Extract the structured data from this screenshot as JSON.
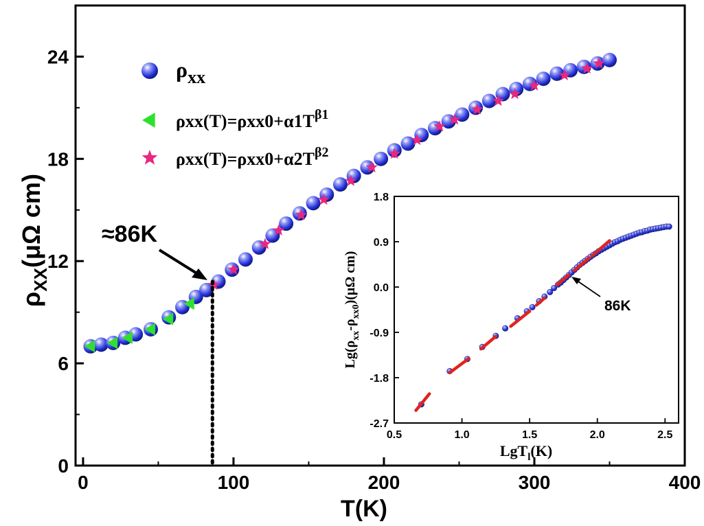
{
  "chart_data": [
    {
      "type": "scatter",
      "xlabel": "T(K)",
      "ylabel": "ρXX(μΩ cm)",
      "xlim": [
        -5,
        400
      ],
      "ylim": [
        0,
        27
      ],
      "xticks": [
        0,
        100,
        200,
        300,
        400
      ],
      "yticks": [
        0,
        6,
        12,
        18,
        24
      ],
      "legend_position": "top-left",
      "annotation": {
        "text": "≈86K",
        "x": 86,
        "y": 10.5
      },
      "vline_x": 86,
      "series": [
        {
          "name": "ρxx",
          "legend_label": "ρ",
          "legend_sub": "xx",
          "marker": "sphere",
          "color": "#2b3be0",
          "x": [
            5,
            12,
            20,
            28,
            35,
            45,
            57,
            66,
            75,
            82,
            90,
            99,
            108,
            117,
            126,
            135,
            144,
            153,
            162,
            171,
            180,
            189,
            198,
            207,
            216,
            225,
            234,
            243,
            252,
            261,
            270,
            279,
            288,
            297,
            306,
            315,
            324,
            333,
            342,
            350
          ],
          "y": [
            7.0,
            7.1,
            7.2,
            7.5,
            7.7,
            8.0,
            8.7,
            9.3,
            9.9,
            10.3,
            10.8,
            11.5,
            12.1,
            12.8,
            13.5,
            14.2,
            14.8,
            15.4,
            15.9,
            16.5,
            17.0,
            17.5,
            18.0,
            18.5,
            18.9,
            19.4,
            19.8,
            20.2,
            20.6,
            21.0,
            21.4,
            21.8,
            22.1,
            22.4,
            22.7,
            23.0,
            23.2,
            23.4,
            23.6,
            23.8
          ]
        },
        {
          "name": "fit1",
          "legend_label": "ρxx(T)=ρxx0+α1T",
          "legend_sup": "β1",
          "marker": "triangle-left",
          "color": "#2fe02f",
          "x": [
            5,
            20,
            30,
            45,
            57,
            71
          ],
          "y": [
            7.0,
            7.2,
            7.5,
            8.0,
            8.6,
            9.5
          ]
        },
        {
          "name": "fit2",
          "legend_label": "ρxx(T)=ρxx0+α2T",
          "legend_sup": "β2",
          "marker": "star",
          "color": "#e8287f",
          "x": [
            87,
            100,
            121,
            130,
            145,
            160,
            178,
            192,
            207,
            222,
            237,
            247,
            262,
            276,
            287,
            300,
            320,
            335,
            343
          ],
          "y": [
            10.6,
            11.5,
            13.0,
            13.8,
            14.7,
            15.6,
            16.7,
            17.5,
            18.3,
            19.1,
            19.9,
            20.3,
            20.9,
            21.4,
            21.8,
            22.3,
            22.9,
            23.3,
            23.6
          ]
        }
      ]
    },
    {
      "type": "scatter",
      "inset": true,
      "xlabel_main": "LgT",
      "xlabel_sub": "l",
      "xlabel_tail": "(K)",
      "ylabel_main": "Lg(ρ",
      "ylabel_sub1": "xx",
      "ylabel_mid": "-ρ",
      "ylabel_sub2": "xx0",
      "ylabel_tail": ")(μΩ cm)",
      "xlim": [
        0.5,
        2.6
      ],
      "ylim": [
        -2.7,
        1.8
      ],
      "xticks": [
        "0.5",
        "1.0",
        "1.5",
        "2.0",
        "2.5"
      ],
      "yticks": [
        "-2.7",
        "-1.8",
        "-0.9",
        "0.0",
        "0.9",
        "1.8"
      ],
      "annotation": {
        "text": "86K",
        "x": 1.93,
        "y": 0.03
      },
      "series": [
        {
          "name": "data",
          "marker": "circle",
          "color": "#2e3de0",
          "x": [
            0.7,
            0.91,
            1.04,
            1.15,
            1.25,
            1.32,
            1.41,
            1.48,
            1.52,
            1.57,
            1.61,
            1.65,
            1.68,
            1.71,
            1.73,
            1.75,
            1.77,
            1.79,
            1.81,
            1.83,
            1.85,
            1.87,
            1.89,
            1.91,
            1.93,
            1.95,
            1.97,
            1.99,
            2.01,
            2.03,
            2.05,
            2.07,
            2.09,
            2.11,
            2.13,
            2.15,
            2.17,
            2.19,
            2.21,
            2.23,
            2.25,
            2.27,
            2.29,
            2.31,
            2.33,
            2.35,
            2.37,
            2.39,
            2.41,
            2.43,
            2.45,
            2.47,
            2.49,
            2.51,
            2.53
          ],
          "y": [
            -2.33,
            -1.67,
            -1.43,
            -1.19,
            -0.97,
            -0.82,
            -0.62,
            -0.48,
            -0.4,
            -0.28,
            -0.19,
            -0.1,
            -0.02,
            0.05,
            0.09,
            0.14,
            0.19,
            0.24,
            0.29,
            0.34,
            0.39,
            0.44,
            0.48,
            0.52,
            0.56,
            0.6,
            0.64,
            0.67,
            0.71,
            0.74,
            0.77,
            0.8,
            0.83,
            0.86,
            0.89,
            0.91,
            0.94,
            0.96,
            0.98,
            1.0,
            1.02,
            1.04,
            1.06,
            1.08,
            1.09,
            1.11,
            1.12,
            1.14,
            1.15,
            1.16,
            1.17,
            1.18,
            1.19,
            1.2,
            1.2
          ]
        },
        {
          "name": "fit1",
          "marker": "dash",
          "color": "#e0241f",
          "segments": [
            [
              0.66,
              -2.45,
              0.76,
              -2.12
            ],
            [
              0.91,
              -1.7,
              1.05,
              -1.42
            ],
            [
              1.14,
              -1.23,
              1.25,
              -0.98
            ],
            [
              1.36,
              -0.78,
              1.5,
              -0.48
            ],
            [
              1.55,
              -0.36,
              1.61,
              -0.22
            ]
          ]
        },
        {
          "name": "fit2",
          "marker": "dash",
          "color": "#e0241f",
          "segments": [
            [
              1.7,
              0.04,
              1.79,
              0.24
            ],
            [
              1.83,
              0.33,
              1.94,
              0.58
            ],
            [
              1.96,
              0.62,
              2.09,
              0.92
            ]
          ]
        }
      ]
    }
  ]
}
